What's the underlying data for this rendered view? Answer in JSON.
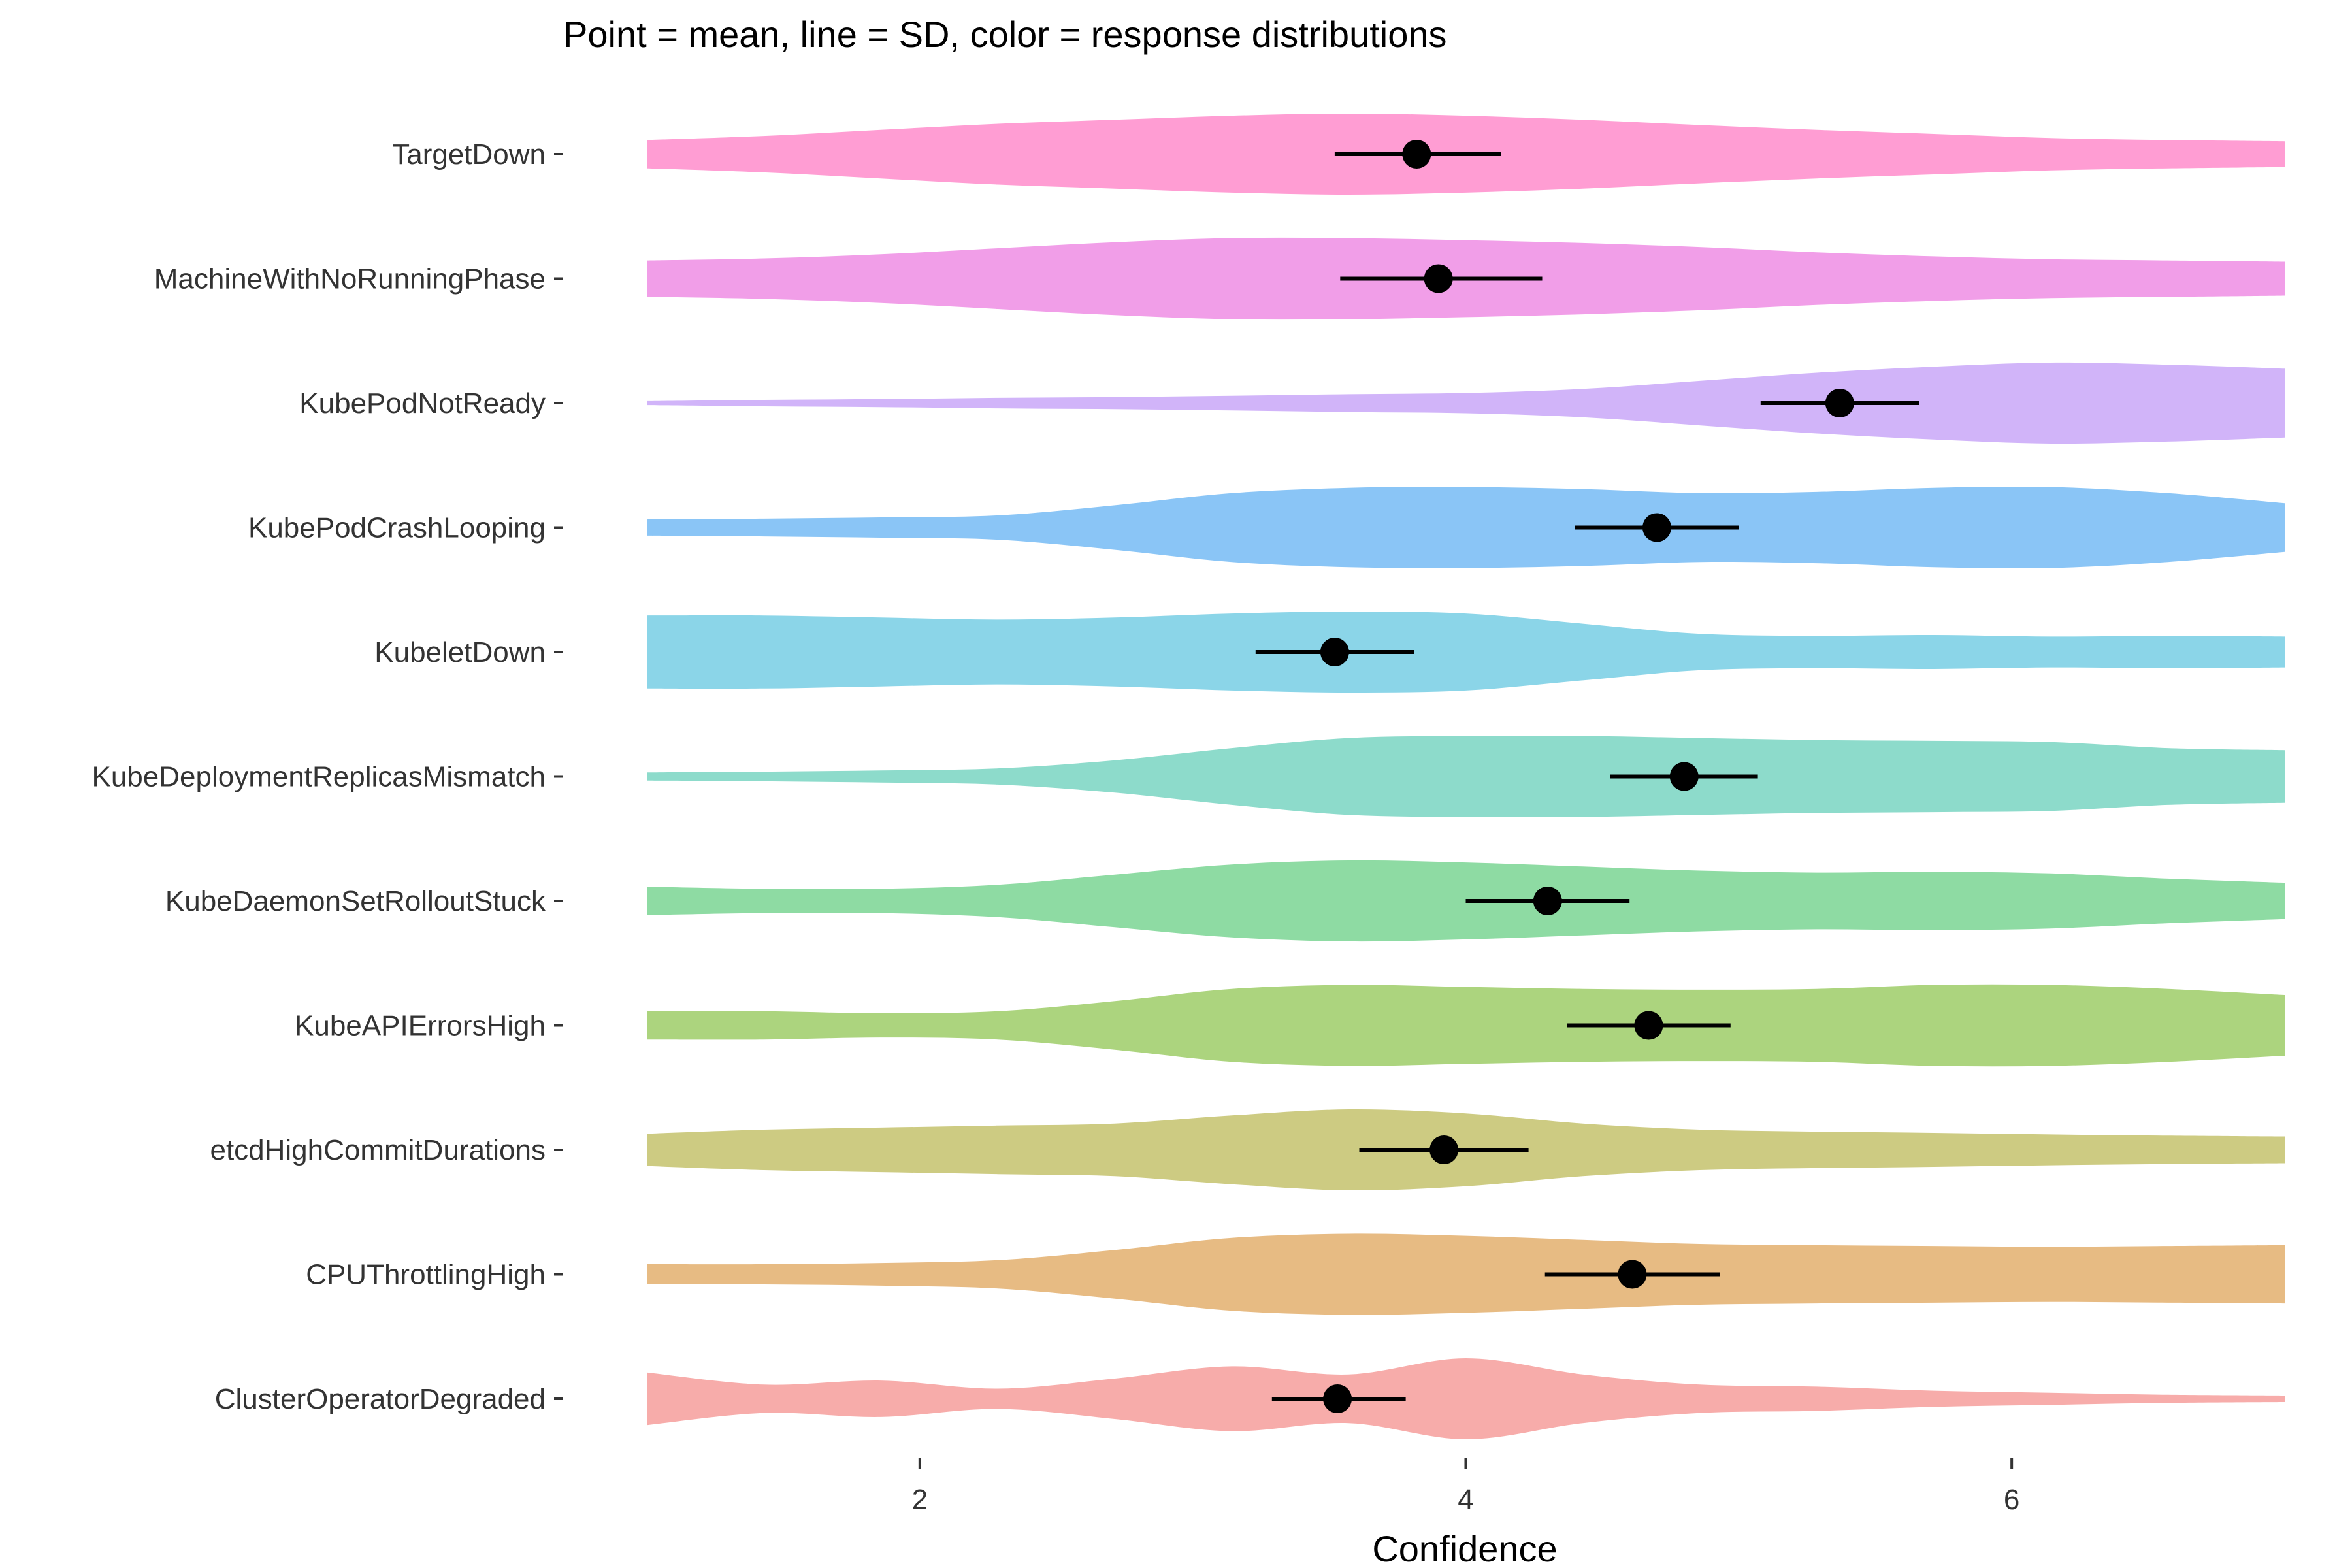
{
  "chart_data": {
    "type": "violin",
    "title": "Point = mean, line = SD, color = response distributions",
    "xlabel": "Confidence",
    "ylabel": "",
    "xlim": [
      1,
      7
    ],
    "xticks": [
      2,
      4,
      6
    ],
    "grid": false,
    "legend": "none",
    "series": [
      {
        "name": "TargetDown",
        "color": "#FF9DD3",
        "mean": 3.82,
        "sd_low": 3.52,
        "sd_high": 4.13,
        "density": [
          0.35,
          0.45,
          0.6,
          0.75,
          0.85,
          0.95,
          1.0,
          0.95,
          0.85,
          0.72,
          0.6,
          0.5,
          0.4,
          0.35,
          0.32
        ]
      },
      {
        "name": "MachineWithNoRunningPhase",
        "color": "#F19EE8",
        "mean": 3.9,
        "sd_low": 3.54,
        "sd_high": 4.28,
        "density": [
          0.45,
          0.5,
          0.6,
          0.75,
          0.9,
          1.0,
          1.0,
          0.95,
          0.88,
          0.78,
          0.65,
          0.55,
          0.48,
          0.45,
          0.42
        ]
      },
      {
        "name": "KubePodNotReady",
        "color": "#D1B4F9",
        "mean": 5.37,
        "sd_low": 5.08,
        "sd_high": 5.66,
        "density": [
          0.05,
          0.08,
          0.1,
          0.13,
          0.15,
          0.18,
          0.22,
          0.25,
          0.35,
          0.55,
          0.75,
          0.9,
          1.0,
          0.95,
          0.85
        ]
      },
      {
        "name": "KubePodCrashLooping",
        "color": "#8AC5F6",
        "mean": 4.7,
        "sd_low": 4.4,
        "sd_high": 5.0,
        "density": [
          0.2,
          0.22,
          0.25,
          0.3,
          0.55,
          0.85,
          0.98,
          1.0,
          0.95,
          0.85,
          0.88,
          0.98,
          1.0,
          0.85,
          0.6
        ]
      },
      {
        "name": "KubeletDown",
        "color": "#8BD5E8",
        "mean": 3.52,
        "sd_low": 3.23,
        "sd_high": 3.81,
        "density": [
          0.9,
          0.9,
          0.85,
          0.8,
          0.85,
          0.95,
          1.0,
          0.95,
          0.7,
          0.45,
          0.4,
          0.42,
          0.38,
          0.4,
          0.38
        ]
      },
      {
        "name": "KubeDeploymentReplicasMismatch",
        "color": "#8DDBCB",
        "mean": 4.8,
        "sd_low": 4.53,
        "sd_high": 5.07,
        "density": [
          0.1,
          0.12,
          0.15,
          0.2,
          0.4,
          0.7,
          0.95,
          1.0,
          1.0,
          0.95,
          0.9,
          0.88,
          0.85,
          0.7,
          0.65
        ]
      },
      {
        "name": "KubeDaemonSetRolloutStuck",
        "color": "#8EDBA3",
        "mean": 4.3,
        "sd_low": 4.0,
        "sd_high": 4.6,
        "density": [
          0.35,
          0.3,
          0.3,
          0.4,
          0.65,
          0.9,
          1.0,
          0.95,
          0.85,
          0.75,
          0.7,
          0.72,
          0.68,
          0.55,
          0.45
        ]
      },
      {
        "name": "KubeAPIErrorsHigh",
        "color": "#ACD47E",
        "mean": 4.67,
        "sd_low": 4.37,
        "sd_high": 4.97,
        "density": [
          0.35,
          0.35,
          0.3,
          0.35,
          0.6,
          0.9,
          1.0,
          0.95,
          0.9,
          0.88,
          0.9,
          1.0,
          1.0,
          0.9,
          0.75
        ]
      },
      {
        "name": "etcdHighCommitDurations",
        "color": "#CDCB82",
        "mean": 3.92,
        "sd_low": 3.61,
        "sd_high": 4.23,
        "density": [
          0.4,
          0.5,
          0.55,
          0.6,
          0.65,
          0.85,
          1.0,
          0.9,
          0.65,
          0.5,
          0.45,
          0.42,
          0.38,
          0.35,
          0.33
        ]
      },
      {
        "name": "CPUThrottlingHigh",
        "color": "#E7BB83",
        "mean": 4.61,
        "sd_low": 4.29,
        "sd_high": 4.93,
        "density": [
          0.25,
          0.25,
          0.28,
          0.35,
          0.6,
          0.9,
          1.0,
          0.95,
          0.85,
          0.75,
          0.72,
          0.7,
          0.68,
          0.7,
          0.72
        ]
      },
      {
        "name": "ClusterOperatorDegraded",
        "color": "#F7ACAA",
        "mean": 3.53,
        "sd_low": 3.29,
        "sd_high": 3.78,
        "density": [
          0.65,
          0.35,
          0.45,
          0.25,
          0.5,
          0.8,
          0.6,
          1.0,
          0.6,
          0.35,
          0.3,
          0.2,
          0.15,
          0.1,
          0.08
        ]
      }
    ]
  }
}
